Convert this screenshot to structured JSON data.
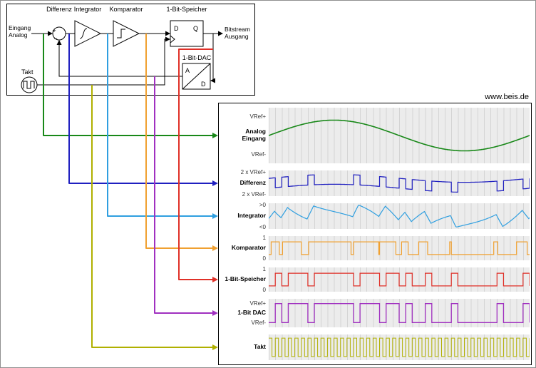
{
  "site": "www.beis.de",
  "diagram": {
    "input_label": "Eingang\nAnalog",
    "output_label": "Bitstream\nAusgang",
    "differenz": "Differenz",
    "integrator": "Integrator",
    "komparator": "Komparator",
    "speicher": "1-Bit-Speicher",
    "dac": "1-Bit-DAC",
    "takt": "Takt",
    "dff_d": "D",
    "dff_q": "Q",
    "dac_a": "A",
    "dac_d": "D",
    "sum_plus": "+",
    "sum_minus": "−"
  },
  "waveforms": {
    "clock_cycles": 40,
    "substeps": 8,
    "sine_amplitude": 0.8,
    "rows": [
      {
        "id": "analog",
        "label": "Analog\nEingang",
        "top": "VRef+",
        "bottom": "VRef-",
        "color": "#188818",
        "signal": "analog",
        "range": [
          -1.45,
          1.45
        ]
      },
      {
        "id": "differenz",
        "label": "Differenz",
        "top": "2 x VRef+",
        "bottom": "2 x VRef-",
        "color": "#2020c0",
        "signal": "differenz",
        "range": [
          -2.6,
          2.6
        ]
      },
      {
        "id": "integrator",
        "label": "Integrator",
        "top": ">0",
        "bottom": "<0",
        "color": "#2f9fe0",
        "signal": "integrator",
        "range": [
          -1.9,
          1.9
        ]
      },
      {
        "id": "komparator",
        "label": "Komparator",
        "top": "1",
        "bottom": "0",
        "color": "#f0a030",
        "signal": "komparator",
        "range": [
          -0.45,
          1.45
        ]
      },
      {
        "id": "speicher",
        "label": "1-Bit-Speicher",
        "top": "1",
        "bottom": "0",
        "color": "#e03028",
        "signal": "speicher",
        "range": [
          -0.45,
          1.45
        ]
      },
      {
        "id": "dac",
        "label": "1-Bit DAC",
        "top": "VRef+",
        "bottom": "VRef-",
        "color": "#a030c0",
        "signal": "dac",
        "range": [
          -1.5,
          1.5
        ]
      },
      {
        "id": "takt",
        "label": "Takt",
        "top": "",
        "bottom": "",
        "color": "#b0b000",
        "signal": "takt",
        "range": [
          -0.2,
          1.2
        ]
      }
    ]
  }
}
